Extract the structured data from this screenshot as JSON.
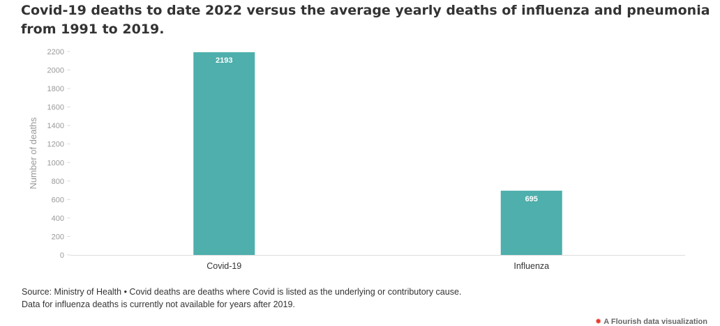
{
  "chart_data": {
    "type": "bar",
    "title": "Covid-19 deaths to date 2022 versus the average yearly deaths of influenza and pneumonia from 1991 to 2019.",
    "ylabel": "Number of deaths",
    "xlabel": "",
    "categories": [
      "Covid-19",
      "Influenza"
    ],
    "values": [
      2193,
      695
    ],
    "data_labels": [
      "2193",
      "695"
    ],
    "ylim": [
      0,
      2200
    ],
    "yticks": [
      0,
      200,
      400,
      600,
      800,
      1000,
      1200,
      1400,
      1600,
      1800,
      2000,
      2200
    ],
    "bar_color": "#4eafac",
    "grid": false,
    "legend": "none"
  },
  "footer": {
    "source_line1": "Source: Ministry of Health • Covid deaths are deaths where Covid is listed as the underlying or contributory cause.",
    "source_line2": "Data for influenza deaths is currently not available for years after 2019.",
    "credit": "A Flourish data visualization",
    "credit_icon": "flourish-logo-icon"
  }
}
